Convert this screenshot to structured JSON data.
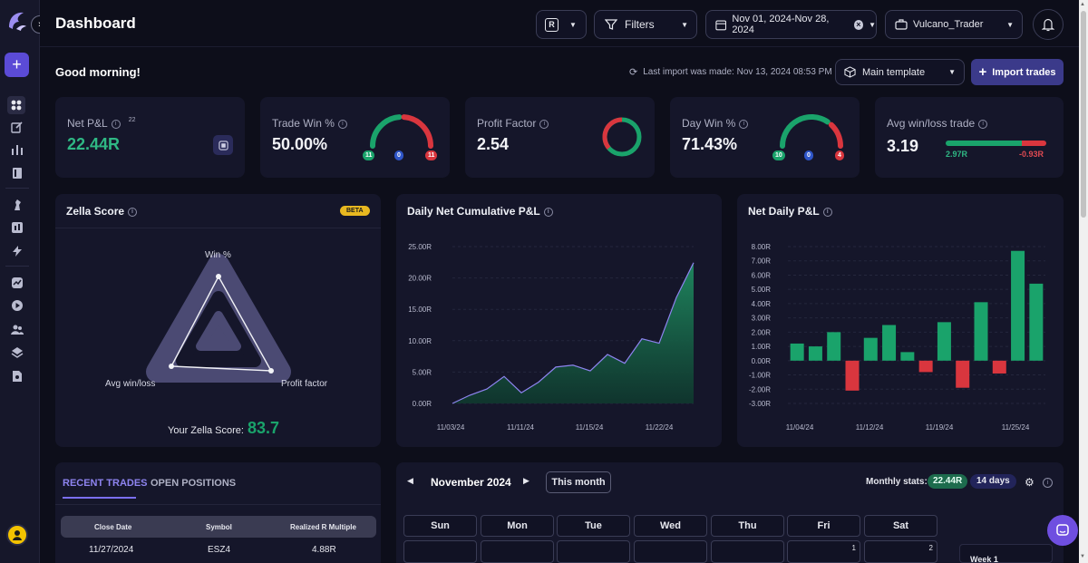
{
  "header": {
    "title": "Dashboard",
    "r_toggle_label": "R",
    "filters_label": "Filters",
    "date_range": "Nov 01, 2024-Nov 28, 2024",
    "account": "Vulcano_Trader"
  },
  "subheader": {
    "greeting": "Good morning!",
    "last_import": "Last import was made: Nov 13, 2024 08:53 PM",
    "template": "Main template",
    "import_label": "Import trades"
  },
  "stats": {
    "net_pnl": {
      "label": "Net P&L",
      "count": "22",
      "value": "22.44R"
    },
    "trade_win": {
      "label": "Trade Win %",
      "value": "50.00%",
      "win": "11",
      "be": "0",
      "loss": "11",
      "win_fraction": 0.5
    },
    "profit_factor": {
      "label": "Profit Factor",
      "value": "2.54"
    },
    "day_win": {
      "label": "Day Win %",
      "value": "71.43%",
      "win": "10",
      "be": "0",
      "loss": "4",
      "win_fraction": 0.7143
    },
    "avg_win_loss": {
      "label": "Avg win/loss trade",
      "value": "3.19",
      "avg_win": "2.97R",
      "avg_loss": "-0.93R"
    }
  },
  "zella": {
    "title": "Zella Score",
    "beta": "BETA",
    "axis_win": "Win %",
    "axis_avg": "Avg win/loss",
    "axis_pf": "Profit factor",
    "score_label": "Your Zella Score:",
    "score": "83.7"
  },
  "cumulative": {
    "title": "Daily Net Cumulative P&L"
  },
  "daily": {
    "title": "Net Daily P&L"
  },
  "chart_data": [
    {
      "type": "area",
      "title": "Daily Net Cumulative P&L",
      "y_ticks": [
        "0.00R",
        "5.00R",
        "10.00R",
        "15.00R",
        "20.00R",
        "25.00R"
      ],
      "ylim": [
        0,
        25
      ],
      "x_ticks": [
        "11/03/24",
        "11/11/24",
        "11/15/24",
        "11/22/24"
      ],
      "values": [
        0.0,
        1.3,
        2.3,
        4.3,
        1.7,
        3.4,
        5.8,
        6.1,
        5.2,
        7.8,
        6.4,
        10.3,
        9.6,
        16.9,
        22.44
      ],
      "color": "#1f8a60"
    },
    {
      "type": "bar",
      "title": "Net Daily P&L",
      "y_ticks": [
        "-3.00R",
        "-2.00R",
        "-1.00R",
        "0.00R",
        "1.00R",
        "2.00R",
        "3.00R",
        "4.00R",
        "5.00R",
        "6.00R",
        "7.00R",
        "8.00R"
      ],
      "ylim": [
        -3,
        8
      ],
      "x_ticks": [
        "11/04/24",
        "11/12/24",
        "11/19/24",
        "11/25/24"
      ],
      "values": [
        1.2,
        1.0,
        2.0,
        -2.1,
        1.6,
        2.5,
        0.6,
        -0.8,
        2.7,
        -1.9,
        4.1,
        -0.9,
        7.7,
        5.4
      ],
      "positive_color": "#1aa36b",
      "negative_color": "#d9363e"
    }
  ],
  "trades": {
    "tab_recent": "RECENT TRADES",
    "tab_open": "OPEN POSITIONS",
    "columns": [
      "Close Date",
      "Symbol",
      "Realized R Multiple"
    ],
    "rows": [
      {
        "date": "11/27/2024",
        "symbol": "ESZ4",
        "r": "4.88R"
      }
    ]
  },
  "calendar": {
    "month": "November 2024",
    "this_month": "This month",
    "monthly_stats_label": "Monthly stats:",
    "monthly_pnl": "22.44R",
    "monthly_days": "14 days",
    "weekdays": [
      "Sun",
      "Mon",
      "Tue",
      "Wed",
      "Thu",
      "Fri",
      "Sat"
    ],
    "first_row": [
      "",
      "",
      "",
      "",
      "",
      "1",
      "2"
    ],
    "week_label": "Week 1"
  },
  "colors": {
    "green": "#1aa36b",
    "red": "#d9363e",
    "accent": "#5b4bd6",
    "blue": "#2f56c9"
  }
}
